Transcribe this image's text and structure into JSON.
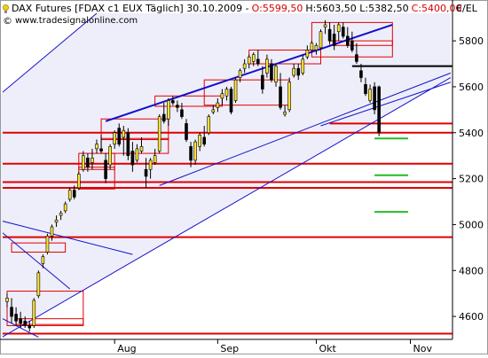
{
  "header": {
    "instrument": "DAX Futures [FDAX c1 EUX Täglich] 30.10.2009 -",
    "open": "O:5599,50",
    "hlc": "H:5603,50 L:5382,50",
    "close": "C:5400,00",
    "website": "www.tradesignalonline.com",
    "unit": "€/EL",
    "bulb_icon": "lightbulb-icon",
    "copyright_icon": "copyright-icon"
  },
  "colors": {
    "candle_up": "#fde33a",
    "candle_down": "#000000",
    "support": "#e00000",
    "trendline": "#1010cc",
    "target": "#22bb22",
    "channel_fill": "#eeeefa"
  },
  "chart_data": {
    "type": "candlestick",
    "title": "DAX Futures [FDAX c1 EUX Täglich] 30.10.2009",
    "ylabel": "€/EL",
    "ylim": [
      4500,
      5920
    ],
    "y_ticks": [
      4600,
      4800,
      5000,
      5200,
      5400,
      5600,
      5800
    ],
    "y_tick_labels": [
      "4600",
      "4800",
      "5000",
      "5200",
      "5400",
      "5600",
      "5800"
    ],
    "x_labels": [
      "Aug",
      "Sep",
      "Okt",
      "Nov"
    ],
    "ohlc": [
      [
        4665,
        4700,
        4640,
        4680
      ],
      [
        4640,
        4680,
        4570,
        4600
      ],
      [
        4610,
        4640,
        4560,
        4580
      ],
      [
        4590,
        4620,
        4550,
        4570
      ],
      [
        4580,
        4600,
        4550,
        4560
      ],
      [
        4560,
        4580,
        4535,
        4550
      ],
      [
        4560,
        4680,
        4550,
        4670
      ],
      [
        4690,
        4800,
        4680,
        4790
      ],
      [
        4830,
        4870,
        4810,
        4860
      ],
      [
        4880,
        4960,
        4870,
        4950
      ],
      [
        4950,
        5000,
        4930,
        4990
      ],
      [
        5010,
        5040,
        4990,
        5020
      ],
      [
        5040,
        5060,
        5020,
        5050
      ],
      [
        5060,
        5100,
        5050,
        5090
      ],
      [
        5110,
        5160,
        5100,
        5150
      ],
      [
        5150,
        5170,
        5110,
        5120
      ],
      [
        5160,
        5230,
        5150,
        5220
      ],
      [
        5240,
        5320,
        5230,
        5300
      ],
      [
        5290,
        5310,
        5230,
        5250
      ],
      [
        5270,
        5330,
        5240,
        5290
      ],
      [
        5330,
        5370,
        5310,
        5350
      ],
      [
        5330,
        5390,
        5310,
        5320
      ],
      [
        5280,
        5310,
        5180,
        5200
      ],
      [
        5260,
        5350,
        5240,
        5340
      ],
      [
        5350,
        5410,
        5330,
        5400
      ],
      [
        5420,
        5440,
        5340,
        5350
      ],
      [
        5380,
        5430,
        5300,
        5410
      ],
      [
        5400,
        5420,
        5280,
        5300
      ],
      [
        5320,
        5360,
        5230,
        5260
      ],
      [
        5280,
        5350,
        5270,
        5330
      ],
      [
        5320,
        5380,
        5310,
        5340
      ],
      [
        5240,
        5290,
        5160,
        5210
      ],
      [
        5240,
        5290,
        5200,
        5280
      ],
      [
        5270,
        5330,
        5260,
        5300
      ],
      [
        5320,
        5480,
        5310,
        5470
      ],
      [
        5480,
        5530,
        5440,
        5450
      ],
      [
        5460,
        5550,
        5430,
        5540
      ],
      [
        5540,
        5560,
        5520,
        5530
      ],
      [
        5520,
        5540,
        5490,
        5510
      ],
      [
        5500,
        5530,
        5460,
        5470
      ],
      [
        5440,
        5460,
        5360,
        5370
      ],
      [
        5340,
        5360,
        5250,
        5280
      ],
      [
        5280,
        5370,
        5260,
        5360
      ],
      [
        5340,
        5400,
        5320,
        5390
      ],
      [
        5380,
        5430,
        5340,
        5350
      ],
      [
        5400,
        5480,
        5390,
        5470
      ],
      [
        5490,
        5520,
        5480,
        5500
      ],
      [
        5510,
        5550,
        5490,
        5530
      ],
      [
        5550,
        5590,
        5520,
        5570
      ],
      [
        5560,
        5600,
        5540,
        5590
      ],
      [
        5590,
        5600,
        5480,
        5490
      ],
      [
        5540,
        5640,
        5530,
        5630
      ],
      [
        5640,
        5680,
        5620,
        5670
      ],
      [
        5680,
        5720,
        5660,
        5700
      ],
      [
        5700,
        5740,
        5680,
        5730
      ],
      [
        5710,
        5750,
        5690,
        5740
      ],
      [
        5720,
        5760,
        5690,
        5700
      ],
      [
        5650,
        5690,
        5570,
        5590
      ],
      [
        5660,
        5740,
        5640,
        5720
      ],
      [
        5700,
        5720,
        5620,
        5630
      ],
      [
        5620,
        5700,
        5600,
        5690
      ],
      [
        5600,
        5660,
        5500,
        5510
      ],
      [
        5480,
        5520,
        5470,
        5490
      ],
      [
        5500,
        5640,
        5490,
        5620
      ],
      [
        5650,
        5700,
        5640,
        5680
      ],
      [
        5680,
        5700,
        5630,
        5650
      ],
      [
        5660,
        5740,
        5650,
        5720
      ],
      [
        5730,
        5780,
        5720,
        5760
      ],
      [
        5760,
        5800,
        5750,
        5790
      ],
      [
        5760,
        5790,
        5740,
        5780
      ],
      [
        5770,
        5850,
        5760,
        5840
      ],
      [
        5860,
        5890,
        5830,
        5870
      ],
      [
        5850,
        5880,
        5790,
        5800
      ],
      [
        5830,
        5870,
        5760,
        5780
      ],
      [
        5840,
        5880,
        5800,
        5870
      ],
      [
        5860,
        5880,
        5810,
        5820
      ],
      [
        5820,
        5860,
        5770,
        5780
      ],
      [
        5800,
        5840,
        5750,
        5760
      ],
      [
        5740,
        5790,
        5700,
        5710
      ],
      [
        5670,
        5700,
        5620,
        5640
      ],
      [
        5610,
        5640,
        5560,
        5570
      ],
      [
        5540,
        5610,
        5530,
        5590
      ],
      [
        5600,
        5620,
        5480,
        5500
      ],
      [
        5600,
        5605,
        5385,
        5400
      ]
    ],
    "month_start_index": {
      "Aug": 24,
      "Sep": 47,
      "Okt": 69,
      "Nov": 90
    },
    "horizontal_levels": [
      {
        "name": "support-5400",
        "value": 5400,
        "color": "#e00000",
        "from_index": -1
      },
      {
        "name": "support-5265",
        "value": 5265,
        "color": "#e00000",
        "from_index": -1
      },
      {
        "name": "support-5185",
        "value": 5185,
        "color": "#e00000",
        "from_index": -1
      },
      {
        "name": "support-5160",
        "value": 5160,
        "color": "#e00000",
        "from_index": -1
      },
      {
        "name": "support-4945",
        "value": 4945,
        "color": "#e00000",
        "from_index": -1
      },
      {
        "name": "support-4525",
        "value": 4525,
        "color": "#e00000",
        "from_index": -1
      },
      {
        "name": "resistance-5690",
        "value": 5690,
        "color": "#000000",
        "from_index": 77
      },
      {
        "name": "level-5440",
        "value": 5440,
        "color": "#e00000",
        "from_index": 72
      }
    ],
    "target_lines": [
      5375,
      5215,
      5055
    ],
    "trendlines": [
      {
        "name": "upper-trendline",
        "points": [
          [
            22,
            5450
          ],
          [
            86,
            5870
          ]
        ],
        "color": "#1010cc",
        "width": 2
      },
      {
        "name": "lower-channel-line",
        "points": [
          [
            34,
            5170
          ],
          [
            99,
            5660
          ]
        ],
        "color": "#1010cc",
        "width": 1
      },
      {
        "name": "lower-channel-line-2",
        "points": [
          [
            70,
            5430
          ],
          [
            99,
            5620
          ]
        ],
        "color": "#1010cc",
        "width": 1
      },
      {
        "name": "outer-channel-upper",
        "points": [
          [
            -2,
            5560
          ],
          [
            20,
            5920
          ]
        ],
        "color": "#1010cc",
        "width": 1
      },
      {
        "name": "outer-channel-lower",
        "points": [
          [
            -2,
            4500
          ],
          [
            99,
            5640
          ]
        ],
        "color": "#1010cc",
        "width": 1
      },
      {
        "name": "old-downtrend",
        "points": [
          [
            -2,
            5020
          ],
          [
            28,
            4870
          ]
        ],
        "color": "#1010cc",
        "width": 1
      },
      {
        "name": "old-downtrend-2",
        "points": [
          [
            -2,
            4980
          ],
          [
            14,
            4720
          ]
        ],
        "color": "#1010cc",
        "width": 1
      },
      {
        "name": "old-downtrend-3",
        "points": [
          [
            -2,
            4600
          ],
          [
            7,
            4510
          ]
        ],
        "color": "#1010cc",
        "width": 1
      }
    ],
    "range_boxes": [
      {
        "from": 0,
        "to": 17,
        "top": 4710,
        "bottom": 4560
      },
      {
        "from": 2,
        "to": 17,
        "top": 4590,
        "bottom": 4565
      },
      {
        "from": 1,
        "to": 13,
        "top": 4920,
        "bottom": 4880
      },
      {
        "from": 16,
        "to": 24,
        "top": 5310,
        "bottom": 5155
      },
      {
        "from": 16,
        "to": 24,
        "top": 5250,
        "bottom": 5240
      },
      {
        "from": 21,
        "to": 36,
        "top": 5460,
        "bottom": 5310
      },
      {
        "from": 21,
        "to": 36,
        "top": 5375,
        "bottom": 5370
      },
      {
        "from": 33,
        "to": 48,
        "top": 5560,
        "bottom": 5515
      },
      {
        "from": 44,
        "to": 63,
        "top": 5630,
        "bottom": 5520
      },
      {
        "from": 54,
        "to": 70,
        "top": 5760,
        "bottom": 5700
      },
      {
        "from": 68,
        "to": 86,
        "top": 5880,
        "bottom": 5730
      },
      {
        "from": 72,
        "to": 86,
        "top": 5800,
        "bottom": 5780
      }
    ]
  }
}
